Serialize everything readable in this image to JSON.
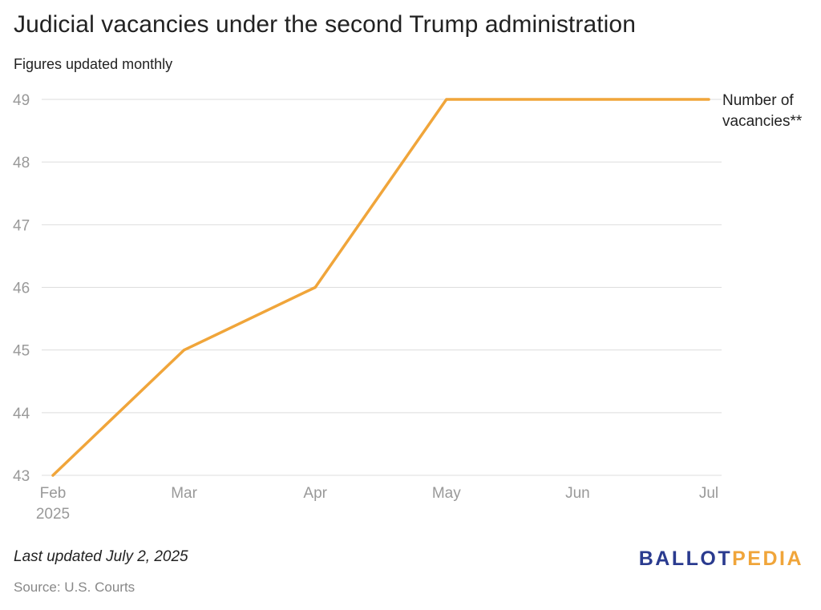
{
  "header": {
    "title": "Judicial vacancies under the second Trump administration",
    "subtitle": "Figures updated monthly"
  },
  "footer": {
    "updated": "Last updated July 2, 2025",
    "source": "Source: U.S. Courts",
    "logo_part_a": "BALLOT",
    "logo_part_b": "PEDIA",
    "logo_colors": {
      "part_a": "#2a3b8f",
      "part_b": "#f0a53a"
    }
  },
  "chart_data": {
    "type": "line",
    "categories": [
      "Feb",
      "Mar",
      "Apr",
      "May",
      "Jun",
      "Jul"
    ],
    "first_category_sublabel": "2025",
    "series": [
      {
        "name": "Number of vacancies**",
        "name_lines": [
          "Number of",
          "vacancies**"
        ],
        "values": [
          43,
          45,
          46,
          49,
          49,
          49
        ],
        "color": "#f0a53a"
      }
    ],
    "y_ticks": [
      43,
      44,
      45,
      46,
      47,
      48,
      49
    ],
    "ylim": [
      43,
      49
    ],
    "grid": true,
    "legend": "end-of-line label",
    "colors": {
      "grid": "#dddddd",
      "tick_label": "#999999",
      "text": "#222222"
    }
  }
}
